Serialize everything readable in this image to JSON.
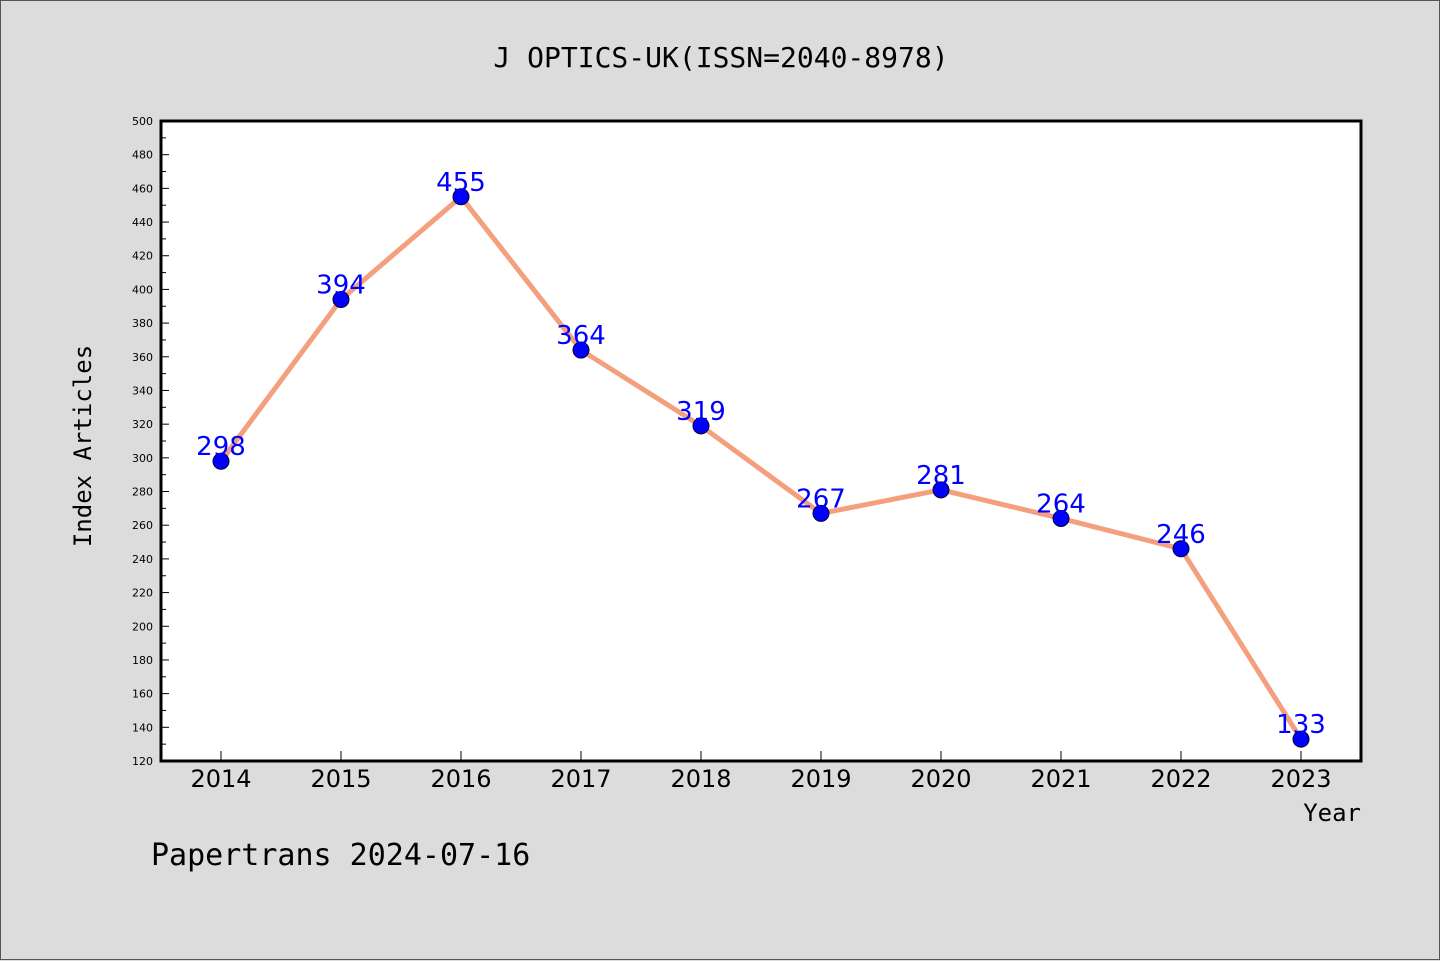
{
  "chart_data": {
    "type": "line",
    "title": "J OPTICS-UK(ISSN=2040-8978)",
    "xlabel": "Year",
    "ylabel": "Index Articles",
    "categories": [
      "2014",
      "2015",
      "2016",
      "2017",
      "2018",
      "2019",
      "2020",
      "2021",
      "2022",
      "2023"
    ],
    "series": [
      {
        "values": [
          298,
          394,
          455,
          364,
          319,
          267,
          281,
          264,
          246,
          133
        ]
      }
    ],
    "ylim": [
      120,
      500
    ],
    "yticks": [
      120,
      140,
      160,
      180,
      200,
      220,
      240,
      260,
      280,
      300,
      320,
      340,
      360,
      380,
      400,
      420,
      440,
      460,
      480,
      500
    ],
    "grid": false,
    "line_color": "#f4a07e",
    "marker_color": "#0000ff",
    "label_color": "#0000ff",
    "background_color": "#dcdcdc",
    "plot_background_color": "#ffffff"
  },
  "footer": "Papertrans 2024-07-16"
}
